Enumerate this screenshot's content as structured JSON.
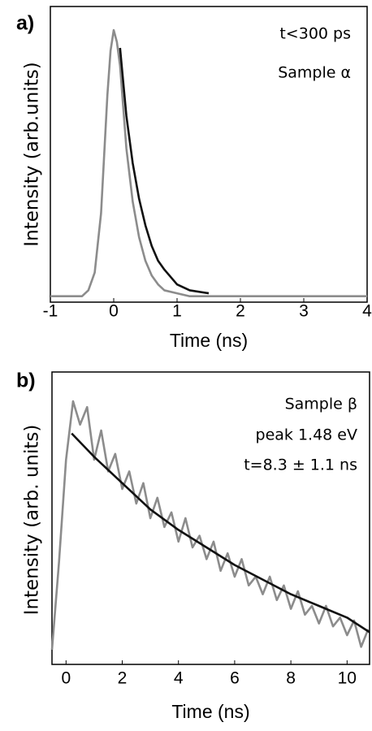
{
  "chart_data": [
    {
      "type": "line",
      "panel_label": "a)",
      "xlabel": "Time (ns)",
      "ylabel": "Intensity (arb.units)",
      "annotations": [
        "t<300 ps",
        "Sample α"
      ],
      "xlim": [
        -1,
        4
      ],
      "ylim": [
        0,
        1
      ],
      "xticks": [
        -1,
        0,
        1,
        2,
        3,
        4
      ],
      "series": [
        {
          "color": "#8c8c8c",
          "x": [
            -1,
            -0.5,
            -0.4,
            -0.3,
            -0.2,
            -0.15,
            -0.1,
            -0.05,
            0,
            0.05,
            0.1,
            0.15,
            0.2,
            0.3,
            0.4,
            0.5,
            0.6,
            0.7,
            0.8,
            1.0,
            1.2,
            1.5,
            2,
            2.5,
            3,
            3.5,
            4
          ],
          "values": [
            0.02,
            0.02,
            0.04,
            0.1,
            0.3,
            0.5,
            0.7,
            0.85,
            0.92,
            0.88,
            0.8,
            0.66,
            0.52,
            0.34,
            0.22,
            0.14,
            0.09,
            0.06,
            0.04,
            0.03,
            0.02,
            0.02,
            0.02,
            0.02,
            0.02,
            0.02,
            0.02
          ]
        },
        {
          "color": "#111111",
          "x": [
            0.1,
            0.2,
            0.3,
            0.4,
            0.5,
            0.6,
            0.7,
            0.8,
            1.0,
            1.2,
            1.5
          ],
          "values": [
            0.86,
            0.63,
            0.47,
            0.35,
            0.26,
            0.19,
            0.14,
            0.11,
            0.06,
            0.04,
            0.03
          ]
        }
      ]
    },
    {
      "type": "line",
      "panel_label": "b)",
      "xlabel": "Time (ns)",
      "ylabel": "Intensity (arb. units)",
      "annotations": [
        "Sample β",
        "peak 1.48 eV",
        "t=8.3 ± 1.1 ns"
      ],
      "xlim": [
        -0.5,
        10.8
      ],
      "ylim": [
        0,
        1
      ],
      "xticks": [
        0,
        2,
        4,
        6,
        8,
        10
      ],
      "series": [
        {
          "color": "#8c8c8c",
          "x": [
            -0.5,
            -0.25,
            0,
            0.25,
            0.5,
            0.75,
            1,
            1.25,
            1.5,
            1.75,
            2,
            2.25,
            2.5,
            2.75,
            3,
            3.25,
            3.5,
            3.75,
            4,
            4.25,
            4.5,
            4.75,
            5,
            5.25,
            5.5,
            5.75,
            6,
            6.25,
            6.5,
            6.75,
            7,
            7.25,
            7.5,
            7.75,
            8,
            8.25,
            8.5,
            8.75,
            9,
            9.25,
            9.5,
            9.75,
            10,
            10.25,
            10.5,
            10.75
          ],
          "values": [
            0.05,
            0.35,
            0.7,
            0.9,
            0.82,
            0.88,
            0.7,
            0.8,
            0.66,
            0.72,
            0.6,
            0.66,
            0.55,
            0.62,
            0.5,
            0.57,
            0.47,
            0.52,
            0.42,
            0.5,
            0.4,
            0.44,
            0.36,
            0.42,
            0.32,
            0.38,
            0.3,
            0.36,
            0.27,
            0.3,
            0.24,
            0.3,
            0.22,
            0.27,
            0.19,
            0.25,
            0.17,
            0.2,
            0.14,
            0.2,
            0.13,
            0.16,
            0.1,
            0.15,
            0.06,
            0.12
          ]
        },
        {
          "color": "#111111",
          "x": [
            0.2,
            1,
            2,
            3,
            4,
            5,
            6,
            7,
            8,
            9,
            10,
            10.8
          ],
          "values": [
            0.79,
            0.71,
            0.62,
            0.53,
            0.46,
            0.4,
            0.34,
            0.29,
            0.24,
            0.2,
            0.16,
            0.11
          ]
        }
      ]
    }
  ]
}
